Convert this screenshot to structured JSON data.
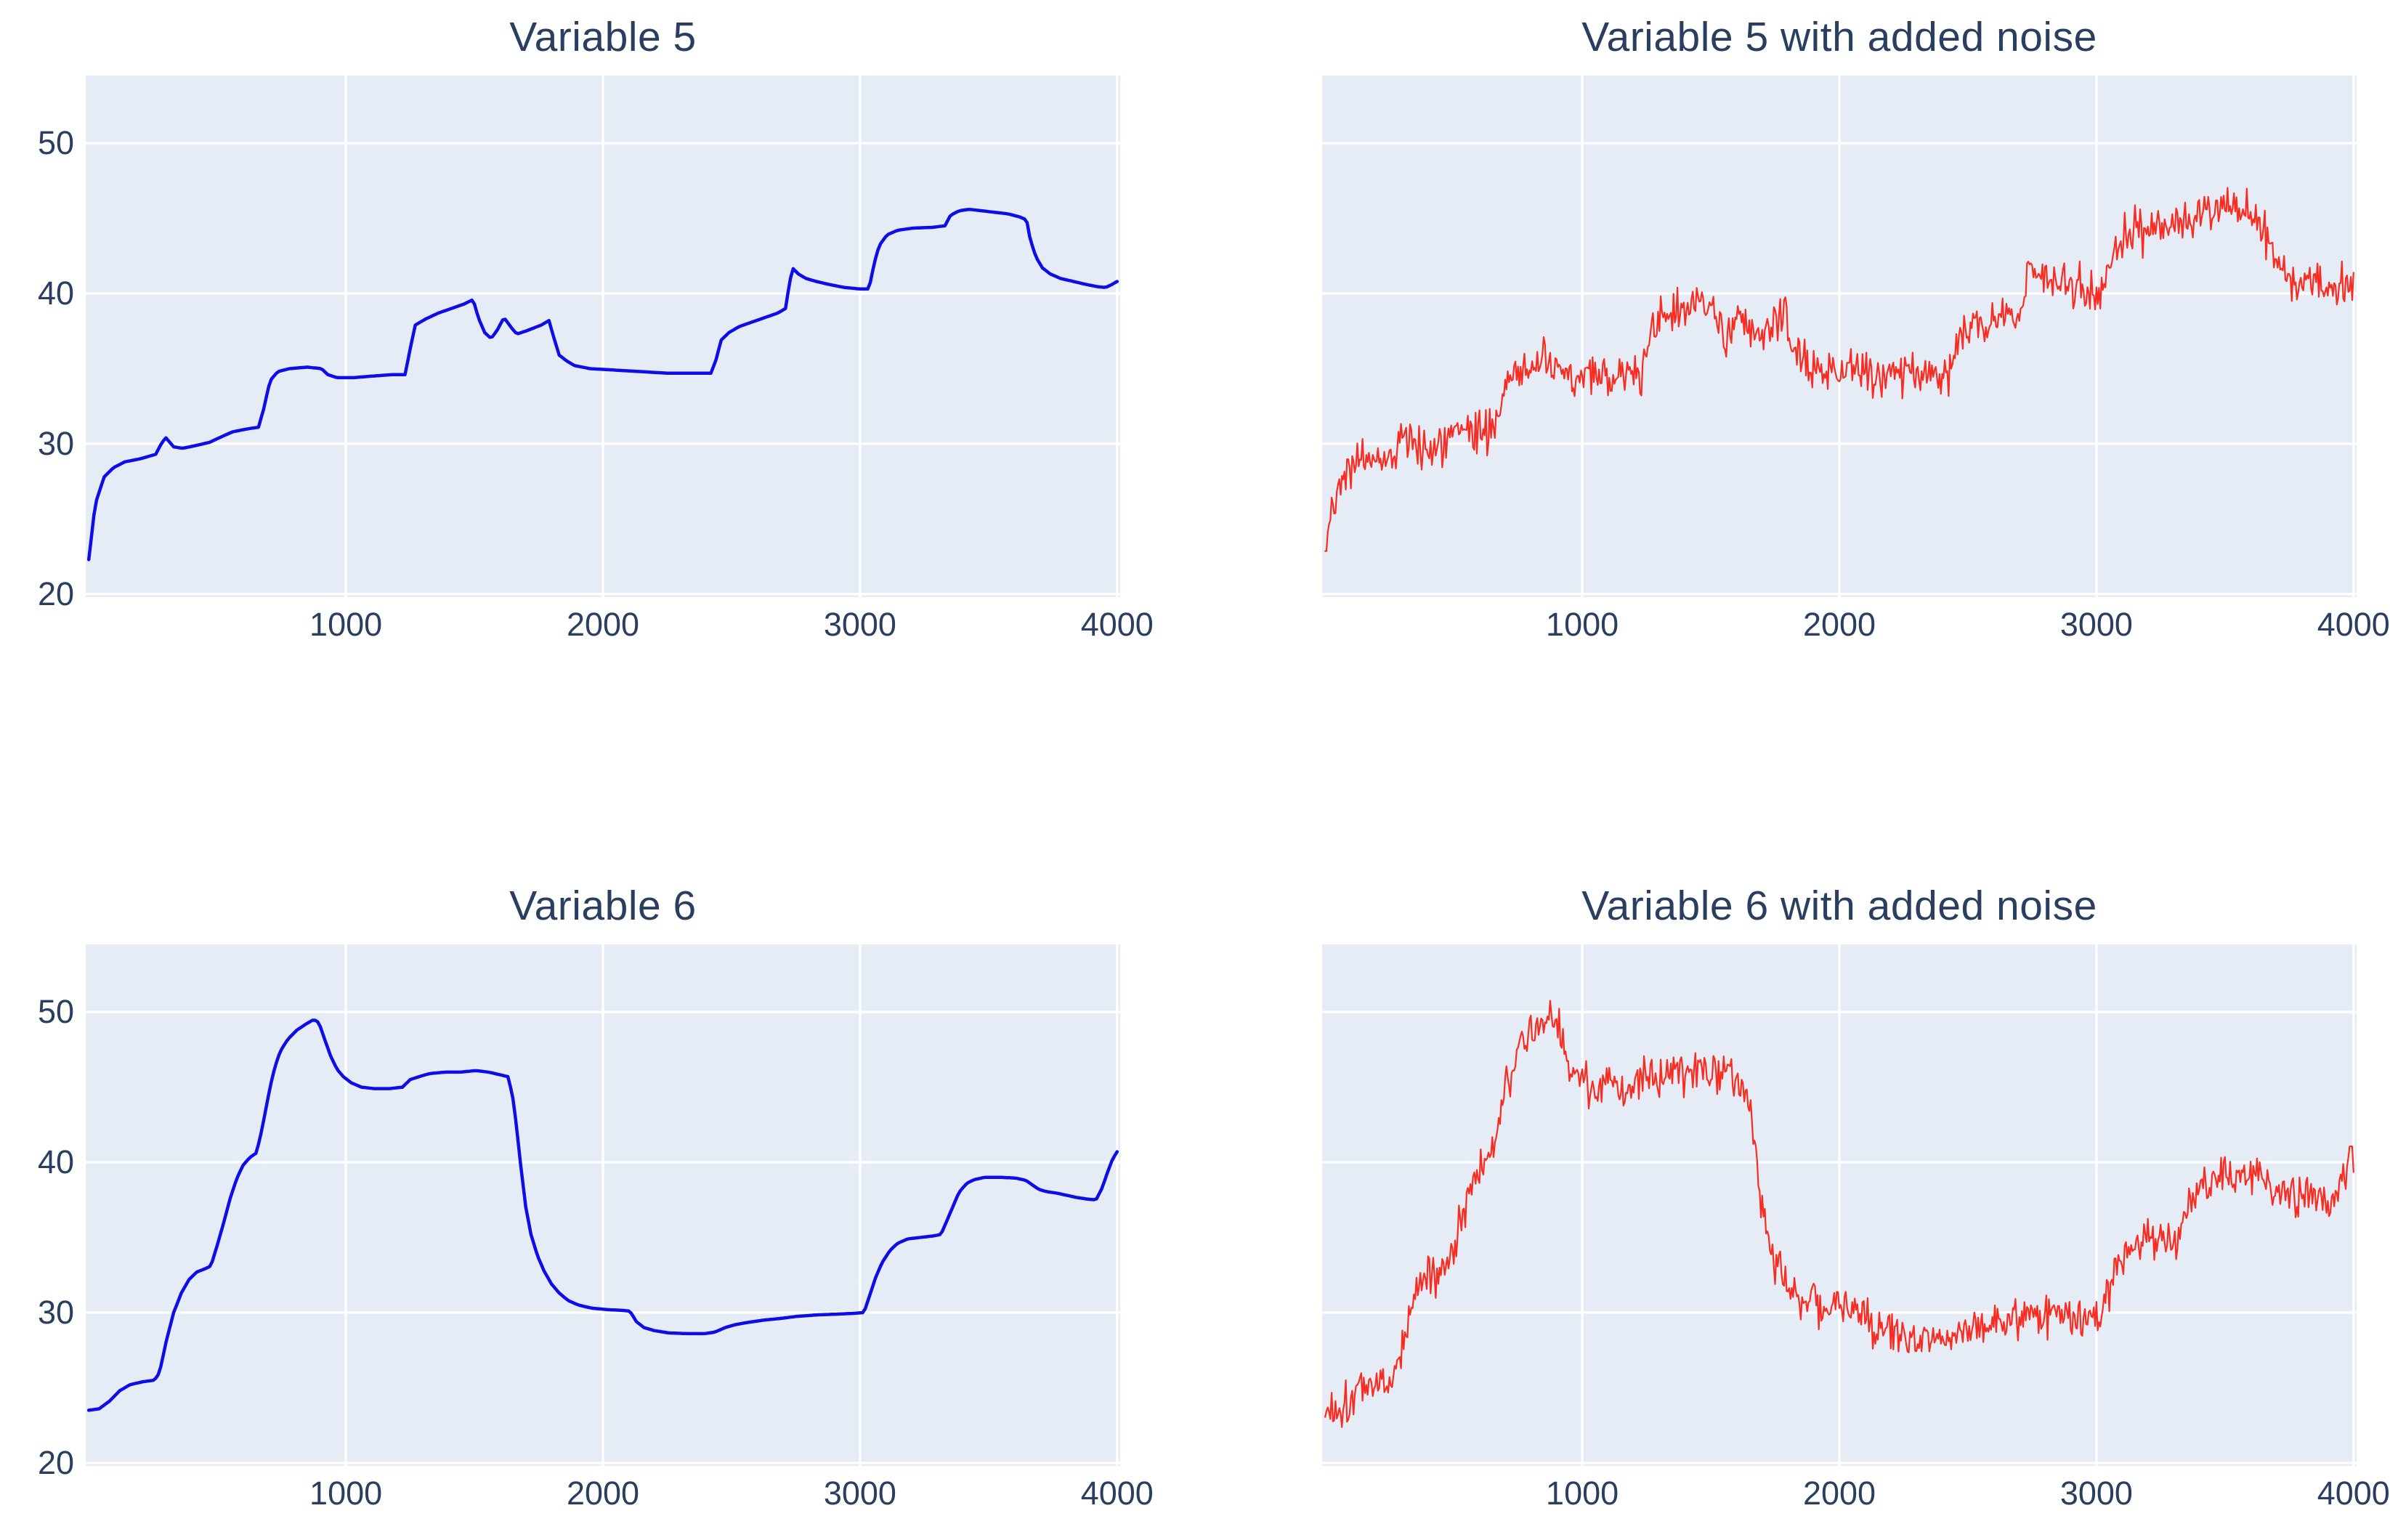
{
  "style": {
    "page_bg": "#ffffff",
    "plot_bg": "#e5ecf6",
    "grid": "#ffffff",
    "text": "#2a3f5f",
    "blue_line": "#0d0de9",
    "red_line": "#f92c21"
  },
  "chart_data": [
    {
      "type": "line",
      "title": "Variable 5",
      "color": "#0d0de9",
      "line_width": 4.5,
      "xlim": [
        -12,
        4012
      ],
      "ylim": [
        19.8,
        54.5
      ],
      "x_ticks": [
        "1000",
        "2000",
        "3000",
        "4000"
      ],
      "x_tick_values": [
        1000,
        2000,
        3000,
        4000
      ],
      "y_ticks": [
        "20",
        "30",
        "40",
        "50"
      ],
      "y_tick_values": [
        20,
        30,
        40,
        50
      ],
      "show_y_tick_labels": true,
      "grid": true,
      "legend": "none",
      "noise_std": 0,
      "seed": 1,
      "sample_step": 10,
      "x": [
        0,
        25,
        60,
        95,
        140,
        200,
        260,
        285,
        300,
        330,
        365,
        420,
        470,
        520,
        560,
        620,
        660,
        680,
        705,
        735,
        780,
        850,
        905,
        930,
        965,
        1030,
        1100,
        1180,
        1230,
        1250,
        1270,
        1310,
        1360,
        1410,
        1460,
        1495,
        1515,
        1540,
        1565,
        1590,
        1615,
        1645,
        1665,
        1700,
        1730,
        1760,
        1790,
        1810,
        1830,
        1860,
        1890,
        1950,
        2050,
        2150,
        2250,
        2350,
        2420,
        2440,
        2460,
        2490,
        2530,
        2580,
        2630,
        2680,
        2710,
        2722,
        2737,
        2760,
        2790,
        2830,
        2880,
        2940,
        3000,
        3035,
        3055,
        3075,
        3105,
        3145,
        3205,
        3280,
        3330,
        3352,
        3385,
        3425,
        3475,
        3525,
        3575,
        3620,
        3648,
        3662,
        3685,
        3710,
        3740,
        3780,
        3830,
        3880,
        3925,
        3955,
        3980,
        4000
      ],
      "y": [
        22.3,
        26.0,
        27.8,
        28.4,
        28.8,
        29.0,
        29.3,
        30.1,
        30.4,
        29.8,
        29.7,
        29.9,
        30.1,
        30.5,
        30.8,
        31.0,
        31.1,
        32.3,
        34.2,
        34.8,
        35.0,
        35.1,
        35.0,
        34.6,
        34.4,
        34.4,
        34.5,
        34.6,
        34.6,
        36.3,
        37.9,
        38.3,
        38.7,
        39.0,
        39.3,
        39.6,
        38.4,
        37.4,
        37.0,
        37.6,
        38.4,
        37.7,
        37.3,
        37.5,
        37.7,
        37.9,
        38.2,
        37.0,
        35.9,
        35.5,
        35.2,
        35.0,
        34.9,
        34.8,
        34.7,
        34.7,
        34.7,
        35.6,
        36.9,
        37.4,
        37.8,
        38.1,
        38.4,
        38.7,
        39.0,
        40.3,
        41.7,
        41.3,
        41.0,
        40.8,
        40.6,
        40.4,
        40.3,
        40.3,
        42.0,
        43.2,
        43.9,
        44.2,
        44.35,
        44.4,
        44.5,
        45.2,
        45.5,
        45.6,
        45.5,
        45.4,
        45.3,
        45.1,
        44.9,
        43.6,
        42.4,
        41.7,
        41.3,
        41.0,
        40.8,
        40.6,
        40.45,
        40.4,
        40.6,
        40.8
      ]
    },
    {
      "type": "line",
      "title": "Variable 5 with added noise",
      "color": "#f92c21",
      "line_width": 2.2,
      "xlim": [
        -12,
        4012
      ],
      "ylim": [
        19.8,
        54.5
      ],
      "x_ticks": [
        "1000",
        "2000",
        "3000",
        "4000"
      ],
      "x_tick_values": [
        1000,
        2000,
        3000,
        4000
      ],
      "y_ticks": [
        "20",
        "30",
        "40",
        "50"
      ],
      "y_tick_values": [
        20,
        30,
        40,
        50
      ],
      "show_y_tick_labels": false,
      "grid": true,
      "legend": "none",
      "noise_std": 0.7,
      "seed": 42,
      "sample_step": 5,
      "x": [
        0,
        25,
        60,
        95,
        140,
        200,
        260,
        285,
        300,
        330,
        365,
        420,
        470,
        520,
        560,
        620,
        660,
        680,
        705,
        735,
        780,
        850,
        905,
        930,
        965,
        1030,
        1100,
        1180,
        1230,
        1250,
        1270,
        1310,
        1360,
        1410,
        1460,
        1495,
        1515,
        1540,
        1565,
        1590,
        1615,
        1645,
        1665,
        1700,
        1730,
        1760,
        1790,
        1810,
        1830,
        1860,
        1890,
        1950,
        2050,
        2150,
        2250,
        2350,
        2420,
        2440,
        2460,
        2490,
        2530,
        2580,
        2630,
        2680,
        2710,
        2722,
        2737,
        2760,
        2790,
        2830,
        2880,
        2940,
        3000,
        3035,
        3055,
        3075,
        3105,
        3145,
        3205,
        3280,
        3330,
        3352,
        3385,
        3425,
        3475,
        3525,
        3575,
        3620,
        3648,
        3662,
        3685,
        3710,
        3740,
        3780,
        3830,
        3880,
        3925,
        3955,
        3980,
        4000
      ],
      "y": [
        22.3,
        26.0,
        27.8,
        28.4,
        28.8,
        29.0,
        29.3,
        30.1,
        30.4,
        29.8,
        29.7,
        29.9,
        30.1,
        30.5,
        30.8,
        31.0,
        31.1,
        32.3,
        34.2,
        34.8,
        35.0,
        35.1,
        35.0,
        34.6,
        34.4,
        34.4,
        34.5,
        34.6,
        34.6,
        36.3,
        37.9,
        38.3,
        38.7,
        39.0,
        39.3,
        39.6,
        38.4,
        37.4,
        37.0,
        37.6,
        38.4,
        37.7,
        37.3,
        37.5,
        37.7,
        37.9,
        38.2,
        37.0,
        35.9,
        35.5,
        35.2,
        35.0,
        34.9,
        34.8,
        34.7,
        34.7,
        34.7,
        35.6,
        36.9,
        37.4,
        37.8,
        38.1,
        38.4,
        38.7,
        39.0,
        40.3,
        41.7,
        41.3,
        41.0,
        40.8,
        40.6,
        40.4,
        40.3,
        40.3,
        42.0,
        43.2,
        43.9,
        44.2,
        44.35,
        44.4,
        44.5,
        45.2,
        45.5,
        45.6,
        45.5,
        45.4,
        45.3,
        45.1,
        44.9,
        43.6,
        42.4,
        41.7,
        41.3,
        41.0,
        40.8,
        40.6,
        40.45,
        40.4,
        40.6,
        40.8
      ]
    },
    {
      "type": "line",
      "title": "Variable 6",
      "color": "#0d0de9",
      "line_width": 4.5,
      "xlim": [
        -12,
        4012
      ],
      "ylim": [
        19.8,
        54.5
      ],
      "x_ticks": [
        "1000",
        "2000",
        "3000",
        "4000"
      ],
      "x_tick_values": [
        1000,
        2000,
        3000,
        4000
      ],
      "y_ticks": [
        "20",
        "30",
        "40",
        "50"
      ],
      "y_tick_values": [
        20,
        30,
        40,
        50
      ],
      "show_y_tick_labels": true,
      "grid": true,
      "legend": "none",
      "noise_std": 0,
      "seed": 2,
      "sample_step": 10,
      "x": [
        0,
        40,
        80,
        120,
        160,
        210,
        255,
        275,
        300,
        330,
        360,
        390,
        420,
        450,
        475,
        500,
        525,
        550,
        575,
        600,
        625,
        650,
        665,
        685,
        705,
        725,
        745,
        775,
        810,
        845,
        875,
        895,
        915,
        940,
        965,
        990,
        1020,
        1060,
        1110,
        1170,
        1220,
        1250,
        1285,
        1325,
        1385,
        1445,
        1505,
        1555,
        1605,
        1630,
        1648,
        1663,
        1680,
        1700,
        1720,
        1745,
        1770,
        1800,
        1830,
        1865,
        1905,
        1955,
        2015,
        2075,
        2105,
        2130,
        2160,
        2200,
        2255,
        2325,
        2395,
        2435,
        2475,
        2515,
        2565,
        2625,
        2685,
        2755,
        2835,
        2915,
        2975,
        3015,
        3035,
        3060,
        3085,
        3115,
        3145,
        3185,
        3235,
        3285,
        3315,
        3335,
        3360,
        3385,
        3415,
        3445,
        3485,
        3545,
        3605,
        3645,
        3670,
        3695,
        3725,
        3765,
        3805,
        3845,
        3885,
        3918,
        3942,
        3962,
        3982,
        4000
      ],
      "y": [
        23.5,
        23.6,
        24.1,
        24.8,
        25.2,
        25.4,
        25.5,
        26.0,
        28.0,
        30.0,
        31.3,
        32.2,
        32.7,
        32.9,
        33.1,
        34.5,
        36.0,
        37.6,
        38.9,
        39.8,
        40.3,
        40.6,
        41.5,
        43.2,
        45.0,
        46.4,
        47.4,
        48.2,
        48.8,
        49.2,
        49.5,
        49.3,
        48.3,
        47.1,
        46.2,
        45.7,
        45.3,
        45.0,
        44.9,
        44.9,
        45.0,
        45.5,
        45.7,
        45.9,
        46.0,
        46.0,
        46.1,
        46.0,
        45.8,
        45.7,
        44.5,
        42.5,
        39.8,
        37.0,
        35.2,
        33.8,
        32.8,
        31.9,
        31.3,
        30.8,
        30.5,
        30.3,
        30.2,
        30.15,
        30.1,
        29.4,
        29.0,
        28.8,
        28.65,
        28.6,
        28.6,
        28.7,
        29.0,
        29.2,
        29.35,
        29.5,
        29.6,
        29.75,
        29.85,
        29.9,
        29.95,
        30.0,
        31.0,
        32.3,
        33.3,
        34.1,
        34.6,
        34.9,
        35.0,
        35.1,
        35.2,
        36.0,
        37.0,
        38.0,
        38.6,
        38.85,
        39.0,
        39.0,
        38.95,
        38.8,
        38.5,
        38.2,
        38.05,
        37.95,
        37.8,
        37.65,
        37.55,
        37.5,
        38.3,
        39.3,
        40.2,
        40.7
      ]
    },
    {
      "type": "line",
      "title": "Variable 6 with added noise",
      "color": "#f92c21",
      "line_width": 2.2,
      "xlim": [
        -12,
        4012
      ],
      "ylim": [
        19.8,
        54.5
      ],
      "x_ticks": [
        "1000",
        "2000",
        "3000",
        "4000"
      ],
      "x_tick_values": [
        1000,
        2000,
        3000,
        4000
      ],
      "y_ticks": [
        "20",
        "30",
        "40",
        "50"
      ],
      "y_tick_values": [
        20,
        30,
        40,
        50
      ],
      "show_y_tick_labels": false,
      "grid": true,
      "legend": "none",
      "noise_std": 0.7,
      "seed": 1337,
      "sample_step": 5,
      "x": [
        0,
        40,
        80,
        120,
        160,
        210,
        255,
        275,
        300,
        330,
        360,
        390,
        420,
        450,
        475,
        500,
        525,
        550,
        575,
        600,
        625,
        650,
        665,
        685,
        705,
        725,
        745,
        775,
        810,
        845,
        875,
        895,
        915,
        940,
        965,
        990,
        1020,
        1060,
        1110,
        1170,
        1220,
        1250,
        1285,
        1325,
        1385,
        1445,
        1505,
        1555,
        1605,
        1630,
        1648,
        1663,
        1680,
        1700,
        1720,
        1745,
        1770,
        1800,
        1830,
        1865,
        1905,
        1955,
        2015,
        2075,
        2105,
        2130,
        2160,
        2200,
        2255,
        2325,
        2395,
        2435,
        2475,
        2515,
        2565,
        2625,
        2685,
        2755,
        2835,
        2915,
        2975,
        3015,
        3035,
        3060,
        3085,
        3115,
        3145,
        3185,
        3235,
        3285,
        3315,
        3335,
        3360,
        3385,
        3415,
        3445,
        3485,
        3545,
        3605,
        3645,
        3670,
        3695,
        3725,
        3765,
        3805,
        3845,
        3885,
        3918,
        3942,
        3962,
        3982,
        4000
      ],
      "y": [
        23.5,
        23.6,
        24.1,
        24.8,
        25.2,
        25.4,
        25.5,
        26.0,
        28.0,
        30.0,
        31.3,
        32.2,
        32.7,
        32.9,
        33.1,
        34.5,
        36.0,
        37.6,
        38.9,
        39.8,
        40.3,
        40.6,
        41.5,
        43.2,
        45.0,
        46.4,
        47.4,
        48.2,
        48.8,
        49.2,
        49.5,
        49.3,
        48.3,
        47.1,
        46.2,
        45.7,
        45.3,
        45.0,
        44.9,
        44.9,
        45.0,
        45.5,
        45.7,
        45.9,
        46.0,
        46.0,
        46.1,
        46.0,
        45.8,
        45.7,
        44.5,
        42.5,
        39.8,
        37.0,
        35.2,
        33.8,
        32.8,
        31.9,
        31.3,
        30.8,
        30.5,
        30.3,
        30.2,
        30.15,
        30.1,
        29.4,
        29.0,
        28.8,
        28.65,
        28.6,
        28.6,
        28.7,
        29.0,
        29.2,
        29.35,
        29.5,
        29.6,
        29.75,
        29.85,
        29.9,
        29.95,
        30.0,
        31.0,
        32.3,
        33.3,
        34.1,
        34.6,
        34.9,
        35.0,
        35.1,
        35.2,
        36.0,
        37.0,
        38.0,
        38.6,
        38.85,
        39.0,
        39.0,
        38.95,
        38.8,
        38.5,
        38.2,
        38.05,
        37.95,
        37.8,
        37.65,
        37.55,
        37.5,
        38.3,
        39.3,
        40.2,
        40.7
      ]
    }
  ]
}
